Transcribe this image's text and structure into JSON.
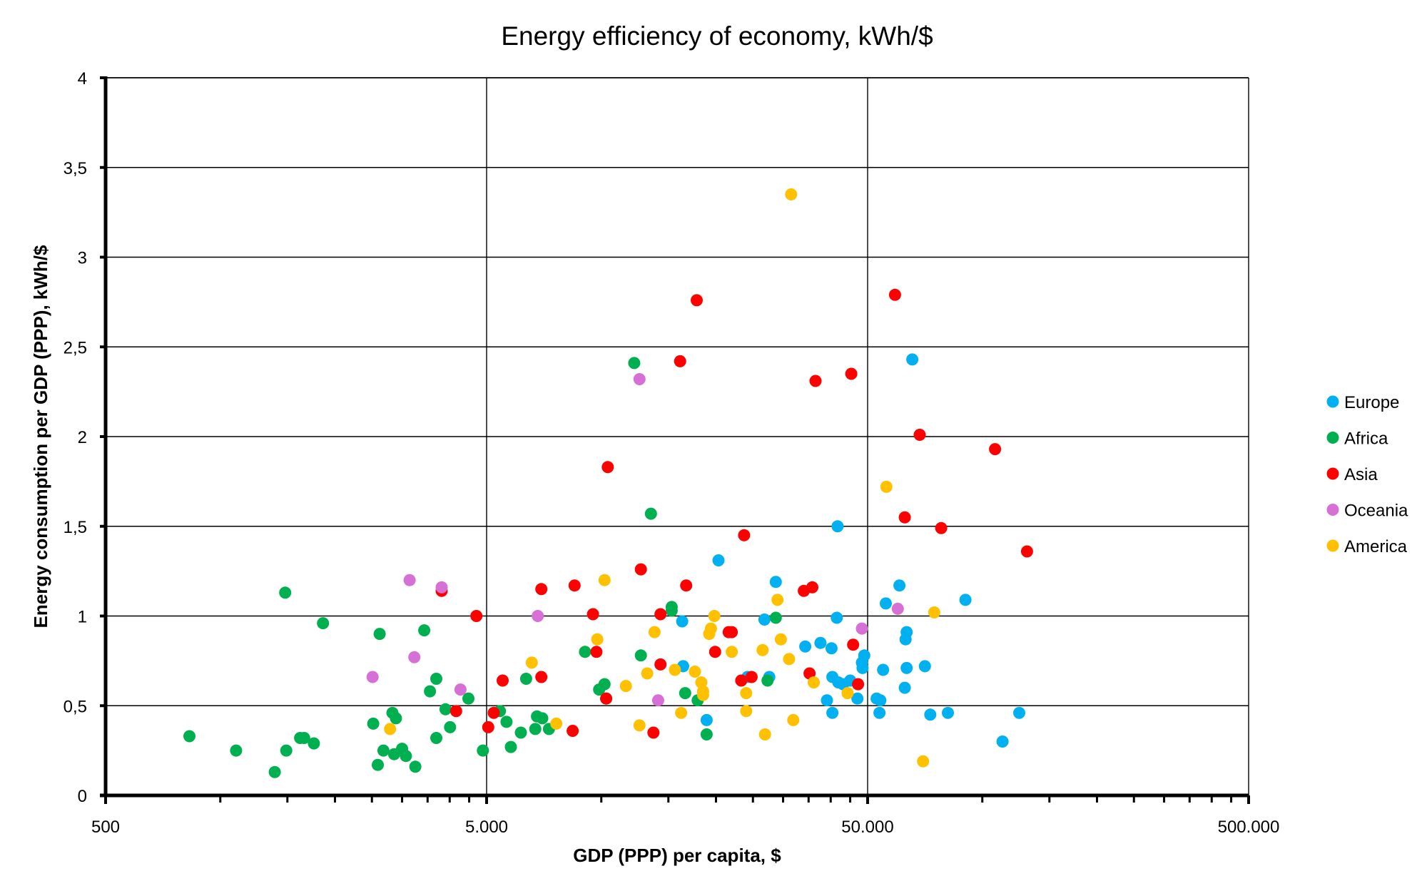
{
  "chart_data": {
    "type": "scatter",
    "title": "Energy efficiency of economy, kWh/$",
    "xlabel": "GDP (PPP) per capita, $",
    "ylabel": "Energy consumption per GDP (PPP), kWh/$",
    "x_scale": "log",
    "xlim": [
      500,
      500000
    ],
    "ylim": [
      0,
      4
    ],
    "x_tick_labels": [
      "500",
      "5.000",
      "50.000",
      "500.000"
    ],
    "x_tick_values": [
      500,
      5000,
      50000,
      500000
    ],
    "y_tick_labels": [
      "0",
      "0,5",
      "1",
      "1,5",
      "2",
      "2,5",
      "3",
      "3,5",
      "4"
    ],
    "y_tick_values": [
      0,
      0.5,
      1,
      1.5,
      2,
      2.5,
      3,
      3.5,
      4
    ],
    "grid": true,
    "legend_position": "right",
    "series": [
      {
        "name": "Europe",
        "color": "#00B0F0",
        "points": [
          [
            65500,
            2.43
          ],
          [
            41700,
            1.5
          ],
          [
            20300,
            1.31
          ],
          [
            28700,
            1.19
          ],
          [
            60600,
            1.17
          ],
          [
            55800,
            1.07
          ],
          [
            90300,
            1.09
          ],
          [
            16300,
            0.97
          ],
          [
            26800,
            0.98
          ],
          [
            41500,
            0.99
          ],
          [
            63300,
            0.91
          ],
          [
            62900,
            0.87
          ],
          [
            34300,
            0.83
          ],
          [
            37600,
            0.85
          ],
          [
            40200,
            0.82
          ],
          [
            49000,
            0.78
          ],
          [
            48300,
            0.74
          ],
          [
            16400,
            0.72
          ],
          [
            54900,
            0.7
          ],
          [
            63300,
            0.71
          ],
          [
            70700,
            0.72
          ],
          [
            48500,
            0.71
          ],
          [
            24200,
            0.66
          ],
          [
            27600,
            0.66
          ],
          [
            40400,
            0.66
          ],
          [
            41900,
            0.63
          ],
          [
            43100,
            0.62
          ],
          [
            45000,
            0.64
          ],
          [
            62600,
            0.6
          ],
          [
            47000,
            0.54
          ],
          [
            39100,
            0.53
          ],
          [
            52800,
            0.54
          ],
          [
            54000,
            0.53
          ],
          [
            18900,
            0.42
          ],
          [
            40400,
            0.46
          ],
          [
            53700,
            0.46
          ],
          [
            73000,
            0.45
          ],
          [
            81200,
            0.46
          ],
          [
            125000,
            0.46
          ],
          [
            113000,
            0.3
          ]
        ]
      },
      {
        "name": "Africa",
        "color": "#00B050",
        "points": [
          [
            830,
            0.33
          ],
          [
            1100,
            0.25
          ],
          [
            1390,
            0.13
          ],
          [
            1490,
            0.25
          ],
          [
            1480,
            1.13
          ],
          [
            1620,
            0.32
          ],
          [
            1660,
            0.32
          ],
          [
            1760,
            0.29
          ],
          [
            1860,
            0.96
          ],
          [
            2520,
            0.4
          ],
          [
            2620,
            0.9
          ],
          [
            2680,
            0.25
          ],
          [
            2590,
            0.17
          ],
          [
            2830,
            0.46
          ],
          [
            2890,
            0.43
          ],
          [
            2860,
            0.23
          ],
          [
            3000,
            0.26
          ],
          [
            3070,
            0.22
          ],
          [
            3250,
            0.16
          ],
          [
            3430,
            0.92
          ],
          [
            3550,
            0.58
          ],
          [
            3690,
            0.65
          ],
          [
            3690,
            0.32
          ],
          [
            3900,
            0.48
          ],
          [
            4010,
            0.38
          ],
          [
            4480,
            0.54
          ],
          [
            4890,
            0.25
          ],
          [
            5420,
            0.47
          ],
          [
            5640,
            0.41
          ],
          [
            5790,
            0.27
          ],
          [
            6150,
            0.35
          ],
          [
            6350,
            0.65
          ],
          [
            6710,
            0.37
          ],
          [
            6780,
            0.44
          ],
          [
            7000,
            0.43
          ],
          [
            7290,
            0.37
          ],
          [
            9060,
            0.8
          ],
          [
            9870,
            0.59
          ],
          [
            10200,
            0.62
          ],
          [
            10300,
            0.54
          ],
          [
            12200,
            2.41
          ],
          [
            12700,
            0.78
          ],
          [
            13500,
            1.57
          ],
          [
            15300,
            1.05
          ],
          [
            15300,
            1.03
          ],
          [
            16600,
            0.57
          ],
          [
            17900,
            0.53
          ],
          [
            18900,
            0.34
          ],
          [
            27300,
            0.64
          ],
          [
            28700,
            0.99
          ]
        ]
      },
      {
        "name": "Asia",
        "color": "#FF0000",
        "points": [
          [
            17800,
            2.76
          ],
          [
            16100,
            2.42
          ],
          [
            59000,
            2.79
          ],
          [
            36500,
            2.31
          ],
          [
            45300,
            2.35
          ],
          [
            10400,
            1.83
          ],
          [
            68500,
            2.01
          ],
          [
            108000,
            1.93
          ],
          [
            23700,
            1.45
          ],
          [
            62600,
            1.55
          ],
          [
            78000,
            1.49
          ],
          [
            131000,
            1.36
          ],
          [
            3810,
            1.14
          ],
          [
            4700,
            1.0
          ],
          [
            6960,
            1.15
          ],
          [
            8510,
            1.17
          ],
          [
            12700,
            1.26
          ],
          [
            16700,
            1.17
          ],
          [
            34000,
            1.14
          ],
          [
            35800,
            1.16
          ],
          [
            9510,
            1.01
          ],
          [
            14300,
            1.01
          ],
          [
            21600,
            0.91
          ],
          [
            22000,
            0.91
          ],
          [
            19900,
            0.8
          ],
          [
            9710,
            0.8
          ],
          [
            14300,
            0.73
          ],
          [
            6960,
            0.66
          ],
          [
            5510,
            0.64
          ],
          [
            45800,
            0.84
          ],
          [
            35200,
            0.68
          ],
          [
            23300,
            0.64
          ],
          [
            24800,
            0.66
          ],
          [
            47200,
            0.62
          ],
          [
            4160,
            0.47
          ],
          [
            5220,
            0.46
          ],
          [
            5050,
            0.38
          ],
          [
            10300,
            0.54
          ],
          [
            8410,
            0.36
          ],
          [
            13700,
            0.35
          ]
        ]
      },
      {
        "name": "Oceania",
        "color": "#D670D6",
        "points": [
          [
            12600,
            2.32
          ],
          [
            3140,
            1.2
          ],
          [
            3810,
            1.16
          ],
          [
            6810,
            1.0
          ],
          [
            3230,
            0.77
          ],
          [
            2510,
            0.66
          ],
          [
            4270,
            0.59
          ],
          [
            14100,
            0.53
          ],
          [
            48300,
            0.93
          ],
          [
            60000,
            1.04
          ]
        ]
      },
      {
        "name": "America",
        "color": "#FFC000",
        "points": [
          [
            31500,
            3.35
          ],
          [
            56000,
            1.72
          ],
          [
            10200,
            1.2
          ],
          [
            29000,
            1.09
          ],
          [
            74800,
            1.02
          ],
          [
            19800,
            1.0
          ],
          [
            9760,
            0.87
          ],
          [
            29600,
            0.87
          ],
          [
            13800,
            0.91
          ],
          [
            19400,
            0.93
          ],
          [
            19200,
            0.9
          ],
          [
            26500,
            0.81
          ],
          [
            22000,
            0.8
          ],
          [
            31100,
            0.76
          ],
          [
            6570,
            0.74
          ],
          [
            13200,
            0.68
          ],
          [
            15600,
            0.7
          ],
          [
            17600,
            0.69
          ],
          [
            36100,
            0.63
          ],
          [
            18300,
            0.63
          ],
          [
            18500,
            0.58
          ],
          [
            18500,
            0.56
          ],
          [
            11600,
            0.61
          ],
          [
            44300,
            0.57
          ],
          [
            24000,
            0.57
          ],
          [
            7620,
            0.4
          ],
          [
            2790,
            0.37
          ],
          [
            12600,
            0.39
          ],
          [
            16200,
            0.46
          ],
          [
            24000,
            0.47
          ],
          [
            26900,
            0.34
          ],
          [
            31900,
            0.42
          ],
          [
            69900,
            0.19
          ]
        ]
      }
    ]
  }
}
